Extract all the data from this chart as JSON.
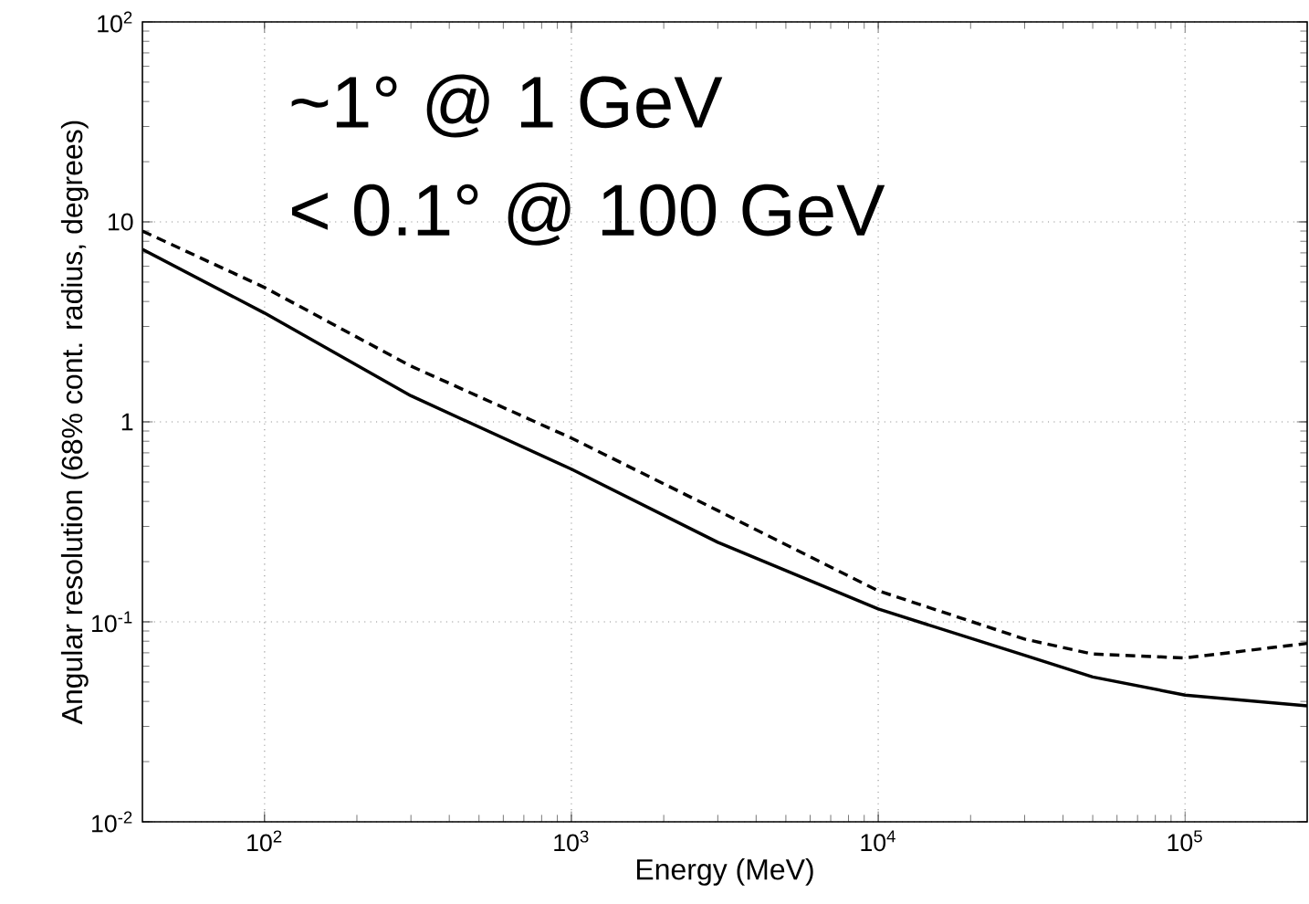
{
  "chart_data": {
    "type": "line",
    "xlabel": "Energy (MeV)",
    "ylabel": "Angular resolution (68% cont. radius, degrees)",
    "annotations": [
      "~1° @ 1 GeV",
      "< 0.1° @ 100 GeV"
    ],
    "log": "xy",
    "grid": true,
    "xlim": [
      40,
      250000
    ],
    "ylim": [
      0.01,
      100
    ],
    "xticks": [
      {
        "value": 100,
        "label": "10$^{2}$"
      },
      {
        "value": 1000,
        "label": "10$^{3}$"
      },
      {
        "value": 10000,
        "label": "10$^{4}$"
      },
      {
        "value": 100000,
        "label": "10$^{5}$"
      }
    ],
    "yticks": [
      {
        "value": 0.01,
        "label": "10$^{-2}$"
      },
      {
        "value": 0.1,
        "label": "10$^{-1}$"
      },
      1,
      10,
      {
        "value": 100,
        "label": "10$^{2}$"
      }
    ],
    "series": [
      {
        "color": "#000000",
        "line_style": "solid",
        "x": [
          40,
          100,
          300,
          1000,
          3000,
          10000,
          30000,
          50000,
          100000,
          250000
        ],
        "values": [
          7.3,
          3.5,
          1.35,
          0.58,
          0.25,
          0.116,
          0.068,
          0.053,
          0.043,
          0.038
        ]
      },
      {
        "color": "#000000",
        "line_style": "dashed",
        "x": [
          40,
          100,
          300,
          1000,
          3000,
          10000,
          30000,
          50000,
          100000,
          250000
        ],
        "values": [
          9.0,
          4.7,
          1.9,
          0.83,
          0.36,
          0.143,
          0.082,
          0.069,
          0.066,
          0.078
        ]
      }
    ]
  }
}
